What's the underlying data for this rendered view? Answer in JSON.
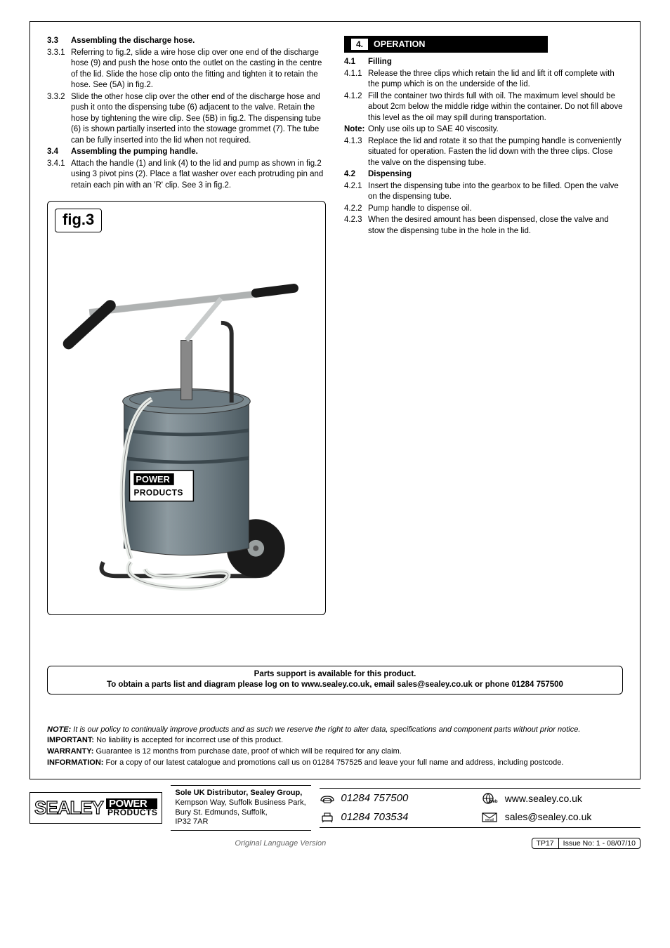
{
  "left_column": {
    "items": [
      {
        "num": "3.3",
        "bold": true,
        "text": "Assembling the discharge hose."
      },
      {
        "num": "3.3.1",
        "bold": false,
        "text": "Referring to fig.2, slide a wire hose clip over one end of the discharge hose (9) and push the hose onto the outlet on the casting in the centre of the lid. Slide the hose clip onto the fitting and tighten it to retain the hose. See (5A) in fig.2."
      },
      {
        "num": "3.3.2",
        "bold": false,
        "text": "Slide the other hose clip over the other end of the discharge hose and push it onto the dispensing tube (6) adjacent to the valve. Retain the hose by tightening the wire clip. See (5B) in fig.2. The dispensing tube (6) is shown partially inserted into the stowage grommet (7). The tube can be fully inserted into the lid when not required."
      },
      {
        "num": "3.4",
        "bold": true,
        "text": "Assembling the pumping handle."
      },
      {
        "num": "3.4.1",
        "bold": false,
        "text": "Attach the handle (1) and link (4) to the lid and pump as shown in fig.2 using 3 pivot pins (2). Place a flat washer over each protruding pin and retain each pin with an 'R' clip. See 3 in fig.2."
      }
    ]
  },
  "figure": {
    "label": "fig.3",
    "product_label_top": "POWER",
    "product_label_bottom": "PRODUCTS",
    "colors": {
      "bucket_fill": "#6d7b82",
      "bucket_dark": "#4c5a61",
      "bucket_light": "#8d9aa0",
      "lid_fill": "#7c8a90",
      "handle_metal": "#d9dcdc",
      "handle_grip": "#1a1a1a",
      "wheel": "#1a1a1a",
      "wheel_hub": "#9aa0a0",
      "hose": "#e8ece8",
      "frame": "#2a2a2a",
      "label_border": "#000",
      "label_bg": "#fff"
    }
  },
  "right_column": {
    "header_num": "4.",
    "header_text": "OPERATION",
    "items": [
      {
        "num": "4.1",
        "bold": true,
        "text": "Filling"
      },
      {
        "num": "4.1.1",
        "bold": false,
        "text": "Release the three clips which retain the lid and lift it off complete with the pump which is on the underside of the lid."
      },
      {
        "num": "4.1.2",
        "bold": false,
        "text": "Fill the container two thirds full with oil. The maximum level should be about 2cm below the middle ridge within the container. Do not fill above this level as the oil may spill during transportation."
      },
      {
        "num": "Note:",
        "bold": false,
        "num_bold": true,
        "text": "Only use oils up to SAE 40 viscosity."
      },
      {
        "num": "4.1.3",
        "bold": false,
        "text": "Replace the lid and rotate it so that the pumping handle is conveniently situated for operation. Fasten the lid down with the three clips. Close the valve on the dispensing tube."
      },
      {
        "num": "4.2",
        "bold": true,
        "text": "Dispensing"
      },
      {
        "num": "4.2.1",
        "bold": false,
        "text": "Insert the dispensing tube into the gearbox to be filled. Open the valve on the dispensing tube."
      },
      {
        "num": "4.2.2",
        "bold": false,
        "text": "Pump handle to dispense oil."
      },
      {
        "num": "4.2.3",
        "bold": false,
        "text": "When the desired amount has been dispensed, close the valve and stow the dispensing tube in the hole in the lid."
      }
    ]
  },
  "parts_support": {
    "line1": "Parts support is available for this product.",
    "line2": "To obtain a parts list and diagram please log on to www.sealey.co.uk, email sales@sealey.co.uk or phone 01284 757500"
  },
  "legal": {
    "note_label": "NOTE:",
    "note_text": "It is our policy to continually improve products and as such we reserve the right to alter data, specifications and component parts without prior notice.",
    "important_label": "IMPORTANT:",
    "important_text": "No liability is accepted for incorrect use of this product.",
    "warranty_label": "WARRANTY:",
    "warranty_text": "Guarantee is 12 months from purchase date, proof of which will be required for any claim.",
    "information_label": "INFORMATION:",
    "information_text": "For a copy of our latest catalogue and promotions call us on 01284 757525 and leave your full name and address, including postcode."
  },
  "footer": {
    "logo_main": "SEALEY",
    "logo_pp_top": "POWER",
    "logo_pp_bottom": "PRODUCTS",
    "distributor_line1": "Sole UK Distributor, Sealey Group,",
    "distributor_line2": "Kempson Way, Suffolk Business Park,",
    "distributor_line3": "Bury St. Edmunds, Suffolk,",
    "distributor_line4": "IP32 7AR",
    "phone": "01284 757500",
    "fax": "01284 703534",
    "web": "www.sealey.co.uk",
    "email": "sales@sealey.co.uk"
  },
  "version_line": {
    "version": "Original Language Version",
    "model": "TP17",
    "issue": "Issue No: 1 - 08/07/10"
  }
}
